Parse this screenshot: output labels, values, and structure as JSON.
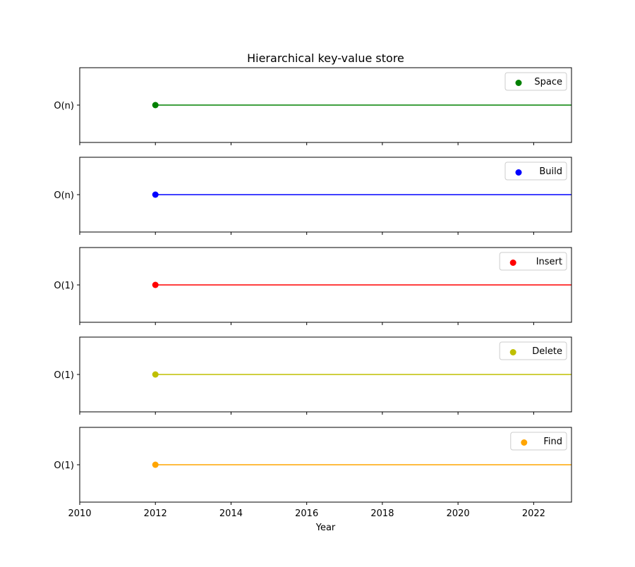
{
  "chart_data": {
    "type": "line",
    "title": "Hierarchical key-value store",
    "xlabel": "Year",
    "xlim": [
      2010,
      2023
    ],
    "xticks": [
      2010,
      2012,
      2014,
      2016,
      2018,
      2020,
      2022
    ],
    "series": [
      {
        "name": "Space",
        "ylabel_value": "O(n)",
        "color": "#008000",
        "x_start": 2012,
        "x_end": 2023
      },
      {
        "name": "Build",
        "ylabel_value": "O(n)",
        "color": "#0000ff",
        "x_start": 2012,
        "x_end": 2023
      },
      {
        "name": "Insert",
        "ylabel_value": "O(1)",
        "color": "#ff0000",
        "x_start": 2012,
        "x_end": 2023
      },
      {
        "name": "Delete",
        "ylabel_value": "O(1)",
        "color": "#bfbf00",
        "x_start": 2012,
        "x_end": 2023
      },
      {
        "name": "Find",
        "ylabel_value": "O(1)",
        "color": "#ffa500",
        "x_start": 2012,
        "x_end": 2023
      }
    ],
    "legend_position": "top-right",
    "grid": false
  }
}
